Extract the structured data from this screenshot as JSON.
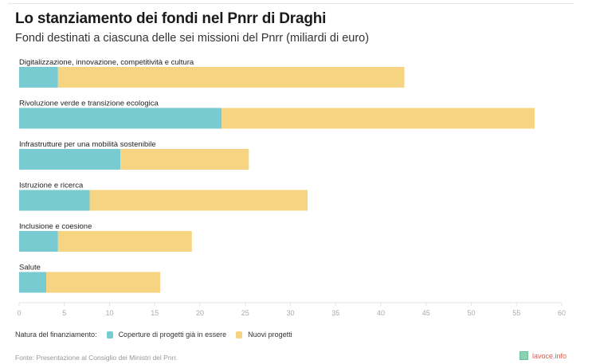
{
  "header": {
    "title": "Lo stanziamento dei fondi nel Pnrr di Draghi",
    "subtitle": "Fondi destinati a ciascuna delle sei missioni del Pnrr (miliardi di euro)"
  },
  "legend": {
    "label": "Natura del finanziamento:",
    "items": [
      {
        "name": "Coperture di progetti già in essere",
        "color": "#78cbd1"
      },
      {
        "name": "Nuovi progetti",
        "color": "#f6d482"
      }
    ]
  },
  "footer": {
    "source": "Fonte: Presentazione al Consiglio dei Ministri del Pnrr.",
    "brand": "lavoce.info"
  },
  "chart_data": {
    "type": "bar",
    "orientation": "horizontal",
    "stacked": true,
    "title": "Lo stanziamento dei fondi nel Pnrr di Draghi",
    "subtitle": "Fondi destinati a ciascuna delle sei missioni del Pnrr (miliardi di euro)",
    "xlabel": "",
    "ylabel": "",
    "xlim": [
      0,
      60
    ],
    "xticks": [
      0,
      5,
      10,
      15,
      20,
      25,
      30,
      35,
      40,
      45,
      50,
      55,
      60
    ],
    "grid": false,
    "legend_position": "bottom-left",
    "categories": [
      "Digitalizzazione, innovazione, competitività e cultura",
      "Rivoluzione verde e transizione ecologica",
      "Infrastrutture per una mobilità sostenibile",
      "Istruzione e ricerca",
      "Inclusione e coesione",
      "Salute"
    ],
    "series": [
      {
        "name": "Coperture di progetti già in essere",
        "color": "#78cbd1",
        "values": [
          4.3,
          22.4,
          11.2,
          7.8,
          4.3,
          3.0
        ]
      },
      {
        "name": "Nuovi progetti",
        "color": "#f6d482",
        "values": [
          38.3,
          34.6,
          14.2,
          24.1,
          14.8,
          12.6
        ]
      }
    ]
  }
}
